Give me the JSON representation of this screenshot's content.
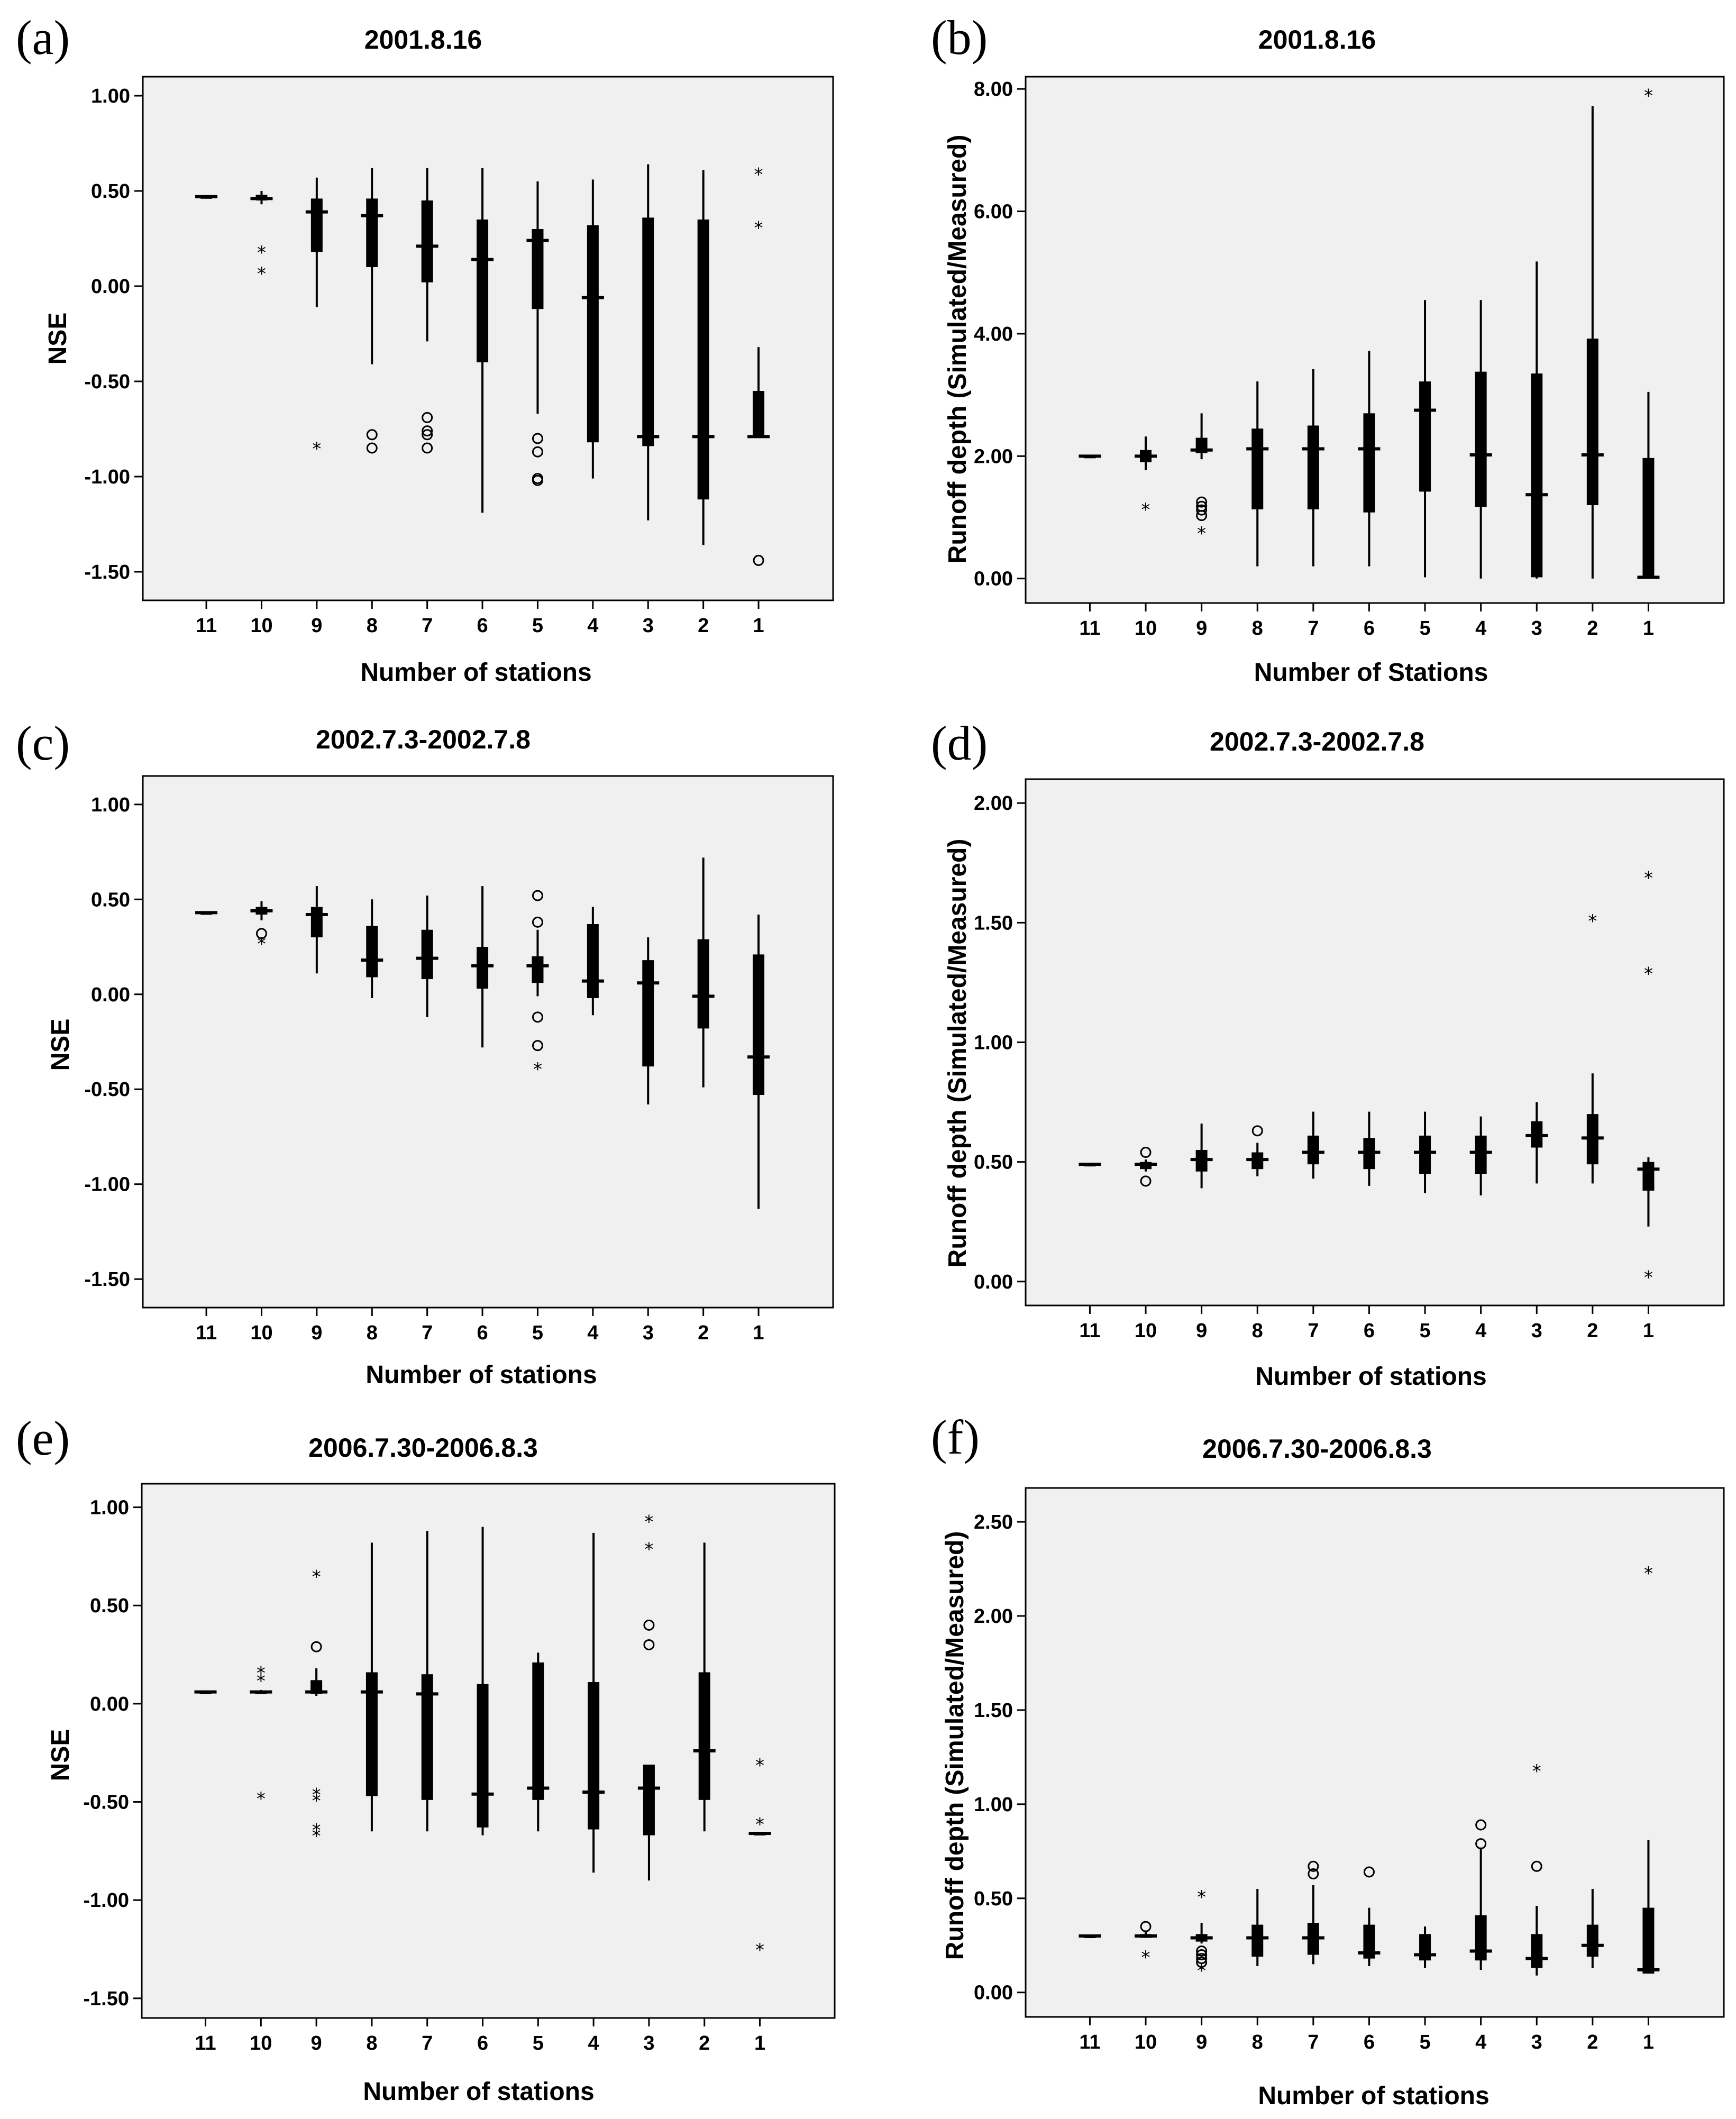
{
  "figure": {
    "panels": [
      {
        "letter": "(a)",
        "title": "2001.8.16",
        "xlabel": "Number of stations",
        "ylabel": "NSE"
      },
      {
        "letter": "(b)",
        "title": "2001.8.16",
        "xlabel": "Number of Stations",
        "ylabel": "Runoff depth (Simulated/Measured)"
      },
      {
        "letter": "(c)",
        "title": "2002.7.3-2002.7.8",
        "xlabel": "Number of stations",
        "ylabel": "NSE"
      },
      {
        "letter": "(d)",
        "title": "2002.7.3-2002.7.8",
        "xlabel": "Number of stations",
        "ylabel": "Runoff depth (Simulated/Measured)"
      },
      {
        "letter": "(e)",
        "title": "2006.7.30-2006.8.3",
        "xlabel": "Number of stations",
        "ylabel": "NSE"
      },
      {
        "letter": "(f)",
        "title": "2006.7.30-2006.8.3",
        "xlabel": "Number of stations",
        "ylabel": "Runoff depth (Simulated/Measured)"
      }
    ]
  },
  "chart_data": [
    {
      "type": "boxplot",
      "panel": "(a)",
      "title": "2001.8.16",
      "xlabel": "Number of stations",
      "ylabel": "NSE",
      "ylim": [
        -1.65,
        1.1
      ],
      "yticks": [
        "1.00",
        "0.50",
        "0.00",
        "-0.50",
        "-1.00",
        "-1.50"
      ],
      "ytick_values": [
        1.0,
        0.5,
        0.0,
        -0.5,
        -1.0,
        -1.5
      ],
      "categories": [
        "11",
        "10",
        "9",
        "8",
        "7",
        "6",
        "5",
        "4",
        "3",
        "2",
        "1"
      ],
      "boxes": [
        {
          "wlo": 0.47,
          "q1": 0.47,
          "med": 0.47,
          "q3": 0.47,
          "whi": 0.47,
          "circles": [],
          "stars": []
        },
        {
          "wlo": 0.43,
          "q1": 0.45,
          "med": 0.46,
          "q3": 0.48,
          "whi": 0.5,
          "circles": [],
          "stars": [
            0.18,
            0.07
          ]
        },
        {
          "wlo": -0.11,
          "q1": 0.18,
          "med": 0.39,
          "q3": 0.46,
          "whi": 0.57,
          "circles": [],
          "stars": [
            -0.85
          ]
        },
        {
          "wlo": -0.41,
          "q1": 0.1,
          "med": 0.37,
          "q3": 0.46,
          "whi": 0.62,
          "circles": [
            -0.78,
            -0.85
          ],
          "stars": []
        },
        {
          "wlo": -0.29,
          "q1": 0.02,
          "med": 0.21,
          "q3": 0.45,
          "whi": 0.62,
          "circles": [
            -0.69,
            -0.76,
            -0.78,
            -0.85
          ],
          "stars": []
        },
        {
          "wlo": -1.19,
          "q1": -0.4,
          "med": 0.14,
          "q3": 0.35,
          "whi": 0.62,
          "circles": [],
          "stars": []
        },
        {
          "wlo": -0.67,
          "q1": -0.12,
          "med": 0.24,
          "q3": 0.3,
          "whi": 0.55,
          "circles": [
            -0.8,
            -0.87,
            -1.01,
            -1.02
          ],
          "stars": []
        },
        {
          "wlo": -1.01,
          "q1": -0.82,
          "med": -0.06,
          "q3": 0.32,
          "whi": 0.56,
          "circles": [],
          "stars": []
        },
        {
          "wlo": -1.23,
          "q1": -0.84,
          "med": -0.79,
          "q3": 0.36,
          "whi": 0.64,
          "circles": [],
          "stars": []
        },
        {
          "wlo": -1.36,
          "q1": -1.12,
          "med": -0.79,
          "q3": 0.35,
          "whi": 0.61,
          "circles": [],
          "stars": []
        },
        {
          "wlo": -0.79,
          "q1": -0.79,
          "med": -0.79,
          "q3": -0.55,
          "whi": -0.32,
          "circles": [
            -1.44
          ],
          "stars": [
            0.59,
            0.31
          ]
        }
      ]
    },
    {
      "type": "boxplot",
      "panel": "(b)",
      "title": "2001.8.16",
      "xlabel": "Number of Stations",
      "ylabel": "Runoff depth (Simulated/Measured)",
      "ylim": [
        -0.4,
        8.2
      ],
      "yticks": [
        "8.00",
        "6.00",
        "4.00",
        "2.00",
        "0.00"
      ],
      "ytick_values": [
        8.0,
        6.0,
        4.0,
        2.0,
        0.0
      ],
      "categories": [
        "11",
        "10",
        "9",
        "8",
        "7",
        "6",
        "5",
        "4",
        "3",
        "2",
        "1"
      ],
      "boxes": [
        {
          "wlo": 2.0,
          "q1": 2.0,
          "med": 2.0,
          "q3": 2.0,
          "whi": 2.0,
          "circles": [],
          "stars": []
        },
        {
          "wlo": 1.77,
          "q1": 1.9,
          "med": 2.0,
          "q3": 2.1,
          "whi": 2.32,
          "circles": [],
          "stars": [
            1.14
          ]
        },
        {
          "wlo": 1.95,
          "q1": 2.05,
          "med": 2.1,
          "q3": 2.3,
          "whi": 2.7,
          "circles": [
            1.25,
            1.18,
            1.12,
            1.03
          ],
          "stars": [
            0.75
          ]
        },
        {
          "wlo": 0.2,
          "q1": 1.13,
          "med": 2.12,
          "q3": 2.45,
          "whi": 3.22,
          "circles": [],
          "stars": []
        },
        {
          "wlo": 0.2,
          "q1": 1.13,
          "med": 2.12,
          "q3": 2.5,
          "whi": 3.42,
          "circles": [],
          "stars": []
        },
        {
          "wlo": 0.2,
          "q1": 1.08,
          "med": 2.12,
          "q3": 2.7,
          "whi": 3.72,
          "circles": [],
          "stars": []
        },
        {
          "wlo": 0.02,
          "q1": 1.42,
          "med": 2.75,
          "q3": 3.22,
          "whi": 4.55,
          "circles": [],
          "stars": []
        },
        {
          "wlo": 0.0,
          "q1": 1.17,
          "med": 2.02,
          "q3": 3.38,
          "whi": 4.55,
          "circles": [],
          "stars": []
        },
        {
          "wlo": 0.0,
          "q1": 0.02,
          "med": 1.37,
          "q3": 3.35,
          "whi": 5.18,
          "circles": [],
          "stars": []
        },
        {
          "wlo": 0.0,
          "q1": 1.2,
          "med": 2.02,
          "q3": 3.92,
          "whi": 7.72,
          "circles": [],
          "stars": []
        },
        {
          "wlo": 0.0,
          "q1": 0.02,
          "med": 0.02,
          "q3": 1.97,
          "whi": 3.05,
          "circles": [],
          "stars": [
            7.9
          ]
        }
      ]
    },
    {
      "type": "boxplot",
      "panel": "(c)",
      "title": "2002.7.3-2002.7.8",
      "xlabel": "Number of stations",
      "ylabel": "NSE",
      "ylim": [
        -1.65,
        1.15
      ],
      "yticks": [
        "1.00",
        "0.50",
        "0.00",
        "-0.50",
        "-1.00",
        "-1.50"
      ],
      "ytick_values": [
        1.0,
        0.5,
        0.0,
        -0.5,
        -1.0,
        -1.5
      ],
      "categories": [
        "11",
        "10",
        "9",
        "8",
        "7",
        "6",
        "5",
        "4",
        "3",
        "2",
        "1"
      ],
      "boxes": [
        {
          "wlo": 0.43,
          "q1": 0.43,
          "med": 0.43,
          "q3": 0.43,
          "whi": 0.43,
          "circles": [],
          "stars": []
        },
        {
          "wlo": 0.39,
          "q1": 0.42,
          "med": 0.44,
          "q3": 0.46,
          "whi": 0.49,
          "circles": [
            0.32
          ],
          "stars": [
            0.27
          ]
        },
        {
          "wlo": 0.11,
          "q1": 0.3,
          "med": 0.42,
          "q3": 0.46,
          "whi": 0.57,
          "circles": [],
          "stars": []
        },
        {
          "wlo": -0.02,
          "q1": 0.09,
          "med": 0.18,
          "q3": 0.36,
          "whi": 0.5,
          "circles": [],
          "stars": []
        },
        {
          "wlo": -0.12,
          "q1": 0.08,
          "med": 0.19,
          "q3": 0.34,
          "whi": 0.52,
          "circles": [],
          "stars": []
        },
        {
          "wlo": -0.28,
          "q1": 0.03,
          "med": 0.15,
          "q3": 0.25,
          "whi": 0.57,
          "circles": [],
          "stars": []
        },
        {
          "wlo": -0.01,
          "q1": 0.06,
          "med": 0.15,
          "q3": 0.2,
          "whi": 0.34,
          "circles": [
            0.52,
            0.38,
            -0.12,
            -0.27
          ],
          "stars": [
            -0.39
          ]
        },
        {
          "wlo": -0.11,
          "q1": -0.02,
          "med": 0.07,
          "q3": 0.37,
          "whi": 0.46,
          "circles": [],
          "stars": []
        },
        {
          "wlo": -0.58,
          "q1": -0.38,
          "med": 0.06,
          "q3": 0.18,
          "whi": 0.3,
          "circles": [],
          "stars": []
        },
        {
          "wlo": -0.49,
          "q1": -0.18,
          "med": -0.01,
          "q3": 0.29,
          "whi": 0.72,
          "circles": [],
          "stars": []
        },
        {
          "wlo": -1.13,
          "q1": -0.53,
          "med": -0.33,
          "q3": 0.21,
          "whi": 0.42,
          "circles": [],
          "stars": []
        }
      ]
    },
    {
      "type": "boxplot",
      "panel": "(d)",
      "title": "2002.7.3-2002.7.8",
      "xlabel": "Number of stations",
      "ylabel": "Runoff depth (Simulated/Measured)",
      "ylim": [
        -0.1,
        2.1
      ],
      "yticks": [
        "2.00",
        "1.50",
        "1.00",
        "0.50",
        "0.00"
      ],
      "ytick_values": [
        2.0,
        1.5,
        1.0,
        0.5,
        0.0
      ],
      "categories": [
        "11",
        "10",
        "9",
        "8",
        "7",
        "6",
        "5",
        "4",
        "3",
        "2",
        "1"
      ],
      "boxes": [
        {
          "wlo": 0.49,
          "q1": 0.49,
          "med": 0.49,
          "q3": 0.49,
          "whi": 0.49,
          "circles": [],
          "stars": []
        },
        {
          "wlo": 0.46,
          "q1": 0.47,
          "med": 0.49,
          "q3": 0.5,
          "whi": 0.51,
          "circles": [
            0.54,
            0.42
          ],
          "stars": []
        },
        {
          "wlo": 0.39,
          "q1": 0.46,
          "med": 0.51,
          "q3": 0.55,
          "whi": 0.66,
          "circles": [],
          "stars": []
        },
        {
          "wlo": 0.44,
          "q1": 0.47,
          "med": 0.51,
          "q3": 0.54,
          "whi": 0.58,
          "circles": [
            0.63
          ],
          "stars": []
        },
        {
          "wlo": 0.43,
          "q1": 0.49,
          "med": 0.54,
          "q3": 0.61,
          "whi": 0.71,
          "circles": [],
          "stars": []
        },
        {
          "wlo": 0.4,
          "q1": 0.47,
          "med": 0.54,
          "q3": 0.6,
          "whi": 0.71,
          "circles": [],
          "stars": []
        },
        {
          "wlo": 0.37,
          "q1": 0.45,
          "med": 0.54,
          "q3": 0.61,
          "whi": 0.71,
          "circles": [],
          "stars": []
        },
        {
          "wlo": 0.36,
          "q1": 0.45,
          "med": 0.54,
          "q3": 0.61,
          "whi": 0.69,
          "circles": [],
          "stars": []
        },
        {
          "wlo": 0.41,
          "q1": 0.56,
          "med": 0.61,
          "q3": 0.67,
          "whi": 0.75,
          "circles": [],
          "stars": []
        },
        {
          "wlo": 0.41,
          "q1": 0.49,
          "med": 0.6,
          "q3": 0.7,
          "whi": 0.87,
          "circles": [],
          "stars": [
            1.51
          ]
        },
        {
          "wlo": 0.23,
          "q1": 0.38,
          "med": 0.47,
          "q3": 0.5,
          "whi": 0.52,
          "circles": [],
          "stars": [
            1.69,
            1.29,
            0.02
          ]
        }
      ]
    },
    {
      "type": "boxplot",
      "panel": "(e)",
      "title": "2006.7.30-2006.8.3",
      "xlabel": "Number of stations",
      "ylabel": "NSE",
      "ylim": [
        -1.6,
        1.12
      ],
      "yticks": [
        "1.00",
        "0.50",
        "0.00",
        "-0.50",
        "-1.00",
        "-1.50"
      ],
      "ytick_values": [
        1.0,
        0.5,
        0.0,
        -0.5,
        -1.0,
        -1.5
      ],
      "categories": [
        "11",
        "10",
        "9",
        "8",
        "7",
        "6",
        "5",
        "4",
        "3",
        "2",
        "1"
      ],
      "boxes": [
        {
          "wlo": 0.06,
          "q1": 0.06,
          "med": 0.06,
          "q3": 0.06,
          "whi": 0.06,
          "circles": [],
          "stars": []
        },
        {
          "wlo": 0.05,
          "q1": 0.05,
          "med": 0.06,
          "q3": 0.06,
          "whi": 0.07,
          "circles": [],
          "stars": [
            0.16,
            0.12,
            -0.48
          ]
        },
        {
          "wlo": 0.04,
          "q1": 0.05,
          "med": 0.06,
          "q3": 0.12,
          "whi": 0.18,
          "circles": [
            0.29
          ],
          "stars": [
            0.65,
            -0.46,
            -0.49,
            -0.64,
            -0.67
          ]
        },
        {
          "wlo": -0.65,
          "q1": -0.47,
          "med": 0.06,
          "q3": 0.16,
          "whi": 0.82,
          "circles": [],
          "stars": []
        },
        {
          "wlo": -0.65,
          "q1": -0.49,
          "med": 0.05,
          "q3": 0.15,
          "whi": 0.88,
          "circles": [],
          "stars": []
        },
        {
          "wlo": -0.67,
          "q1": -0.63,
          "med": -0.46,
          "q3": 0.1,
          "whi": 0.9,
          "circles": [],
          "stars": []
        },
        {
          "wlo": -0.65,
          "q1": -0.49,
          "med": -0.43,
          "q3": 0.21,
          "whi": 0.26,
          "circles": [],
          "stars": []
        },
        {
          "wlo": -0.86,
          "q1": -0.64,
          "med": -0.45,
          "q3": 0.11,
          "whi": 0.87,
          "circles": [],
          "stars": []
        },
        {
          "wlo": -0.9,
          "q1": -0.67,
          "med": -0.43,
          "q3": -0.31,
          "whi": -0.31,
          "circles": [
            0.4,
            0.3
          ],
          "stars": [
            0.93,
            0.79
          ]
        },
        {
          "wlo": -0.65,
          "q1": -0.49,
          "med": -0.24,
          "q3": 0.16,
          "whi": 0.82,
          "circles": [],
          "stars": []
        },
        {
          "wlo": -0.66,
          "q1": -0.66,
          "med": -0.66,
          "q3": -0.66,
          "whi": -0.66,
          "circles": [],
          "stars": [
            -0.31,
            -0.61,
            -1.25
          ]
        }
      ]
    },
    {
      "type": "boxplot",
      "panel": "(f)",
      "title": "2006.7.30-2006.8.3",
      "xlabel": "Number of stations",
      "ylabel": "Runoff depth (Simulated/Measured)",
      "ylim": [
        -0.13,
        2.68
      ],
      "yticks": [
        "2.50",
        "2.00",
        "1.50",
        "1.00",
        "0.50",
        "0.00"
      ],
      "ytick_values": [
        2.5,
        2.0,
        1.5,
        1.0,
        0.5,
        0.0
      ],
      "categories": [
        "11",
        "10",
        "9",
        "8",
        "7",
        "6",
        "5",
        "4",
        "3",
        "2",
        "1"
      ],
      "boxes": [
        {
          "wlo": 0.3,
          "q1": 0.3,
          "med": 0.3,
          "q3": 0.3,
          "whi": 0.3,
          "circles": [],
          "stars": []
        },
        {
          "wlo": 0.29,
          "q1": 0.29,
          "med": 0.3,
          "q3": 0.31,
          "whi": 0.32,
          "circles": [
            0.35
          ],
          "stars": [
            0.19
          ]
        },
        {
          "wlo": 0.26,
          "q1": 0.27,
          "med": 0.29,
          "q3": 0.31,
          "whi": 0.37,
          "circles": [
            0.22,
            0.2,
            0.18,
            0.16
          ],
          "stars": [
            0.51,
            0.12
          ]
        },
        {
          "wlo": 0.14,
          "q1": 0.19,
          "med": 0.29,
          "q3": 0.36,
          "whi": 0.55,
          "circles": [],
          "stars": []
        },
        {
          "wlo": 0.15,
          "q1": 0.2,
          "med": 0.29,
          "q3": 0.37,
          "whi": 0.57,
          "circles": [
            0.67,
            0.63
          ],
          "stars": []
        },
        {
          "wlo": 0.14,
          "q1": 0.18,
          "med": 0.21,
          "q3": 0.36,
          "whi": 0.45,
          "circles": [
            0.64
          ],
          "stars": []
        },
        {
          "wlo": 0.13,
          "q1": 0.17,
          "med": 0.2,
          "q3": 0.31,
          "whi": 0.35,
          "circles": [],
          "stars": []
        },
        {
          "wlo": 0.12,
          "q1": 0.17,
          "med": 0.22,
          "q3": 0.41,
          "whi": 0.77,
          "circles": [
            0.89,
            0.79
          ],
          "stars": []
        },
        {
          "wlo": 0.09,
          "q1": 0.13,
          "med": 0.18,
          "q3": 0.31,
          "whi": 0.46,
          "circles": [
            0.67
          ],
          "stars": [
            1.18
          ]
        },
        {
          "wlo": 0.13,
          "q1": 0.19,
          "med": 0.25,
          "q3": 0.36,
          "whi": 0.55,
          "circles": [],
          "stars": []
        },
        {
          "wlo": 0.1,
          "q1": 0.1,
          "med": 0.12,
          "q3": 0.45,
          "whi": 0.81,
          "circles": [],
          "stars": [
            2.23
          ]
        }
      ]
    }
  ]
}
